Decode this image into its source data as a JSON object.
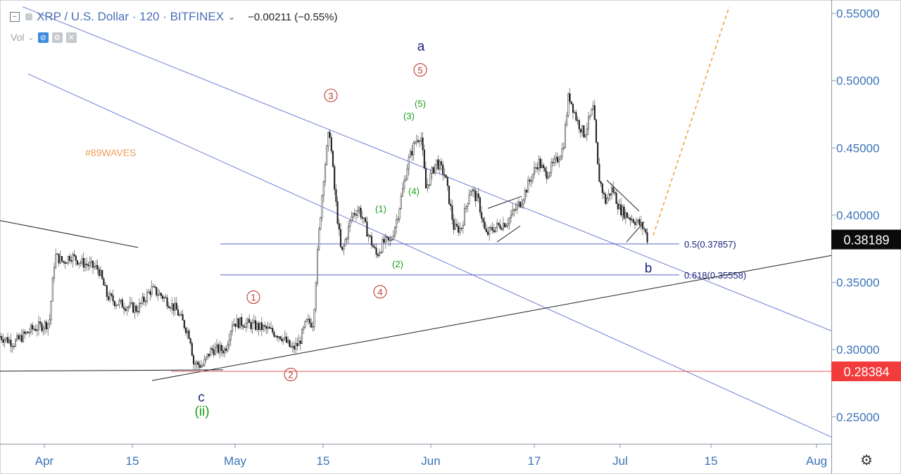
{
  "header": {
    "collapse_icon": "minus-box-icon",
    "symbol_title": "XRP / U.S. Dollar · 120 · BITFINEX",
    "dropdown_icon": "chevron-down-icon",
    "change": "−0.00211 (−0.55%)"
  },
  "volume": {
    "label": "Vol",
    "chevron": "chevron-down-icon",
    "icons": [
      "eye-off-icon",
      "gear-icon",
      "close-icon"
    ]
  },
  "settings_icon": "gear-icon",
  "watermark": "#89WAVES",
  "colors": {
    "candle": "#1e1e1e",
    "price_axis_text": "#3b73b9",
    "channel_line": "#6f7fd6",
    "fib_line": "#5b63c9",
    "support_line": "#e05a5a",
    "trend_line": "#222222",
    "projection": "#f5a04a",
    "red_label": "#c0392b",
    "green_label": "#1a9d1a",
    "navy_label": "#1a237e",
    "watermark": "#f0a05a"
  },
  "chart_data": {
    "type": "candlestick",
    "symbol": "XRP / U.S. Dollar",
    "interval": "120",
    "exchange": "BITFINEX",
    "ylim": [
      0.23,
      0.56
    ],
    "y_ticks": [
      "0.55000",
      "0.50000",
      "0.45000",
      "0.40000",
      "0.35000",
      "0.30000",
      "0.25000"
    ],
    "x_ticks": [
      "Apr",
      "15",
      "May",
      "15",
      "Jun",
      "17",
      "Jul",
      "15",
      "Aug"
    ],
    "price_labels": {
      "current": "0.38189",
      "support": "0.28384"
    },
    "fib_levels": [
      {
        "label": "0.5(0.37857)",
        "value": 0.37857
      },
      {
        "label": "0.618(0.35558)",
        "value": 0.35558
      }
    ],
    "price_path": [
      [
        0,
        0.31
      ],
      [
        20,
        0.305
      ],
      [
        45,
        0.315
      ],
      [
        70,
        0.32
      ],
      [
        78,
        0.37
      ],
      [
        90,
        0.365
      ],
      [
        100,
        0.37
      ],
      [
        115,
        0.365
      ],
      [
        140,
        0.36
      ],
      [
        152,
        0.34
      ],
      [
        165,
        0.335
      ],
      [
        195,
        0.33
      ],
      [
        215,
        0.345
      ],
      [
        230,
        0.34
      ],
      [
        250,
        0.33
      ],
      [
        270,
        0.31
      ],
      [
        275,
        0.29
      ],
      [
        288,
        0.288
      ],
      [
        300,
        0.3
      ],
      [
        320,
        0.3
      ],
      [
        330,
        0.32
      ],
      [
        345,
        0.32
      ],
      [
        360,
        0.318
      ],
      [
        380,
        0.315
      ],
      [
        400,
        0.31
      ],
      [
        415,
        0.3
      ],
      [
        425,
        0.305
      ],
      [
        435,
        0.32
      ],
      [
        445,
        0.32
      ],
      [
        452,
        0.38
      ],
      [
        460,
        0.43
      ],
      [
        468,
        0.465
      ],
      [
        475,
        0.42
      ],
      [
        485,
        0.37
      ],
      [
        500,
        0.4
      ],
      [
        510,
        0.405
      ],
      [
        520,
        0.39
      ],
      [
        535,
        0.37
      ],
      [
        545,
        0.38
      ],
      [
        555,
        0.38
      ],
      [
        565,
        0.4
      ],
      [
        580,
        0.44
      ],
      [
        590,
        0.455
      ],
      [
        598,
        0.46
      ],
      [
        605,
        0.42
      ],
      [
        620,
        0.44
      ],
      [
        632,
        0.43
      ],
      [
        645,
        0.39
      ],
      [
        655,
        0.39
      ],
      [
        668,
        0.42
      ],
      [
        680,
        0.41
      ],
      [
        690,
        0.385
      ],
      [
        700,
        0.39
      ],
      [
        720,
        0.395
      ],
      [
        740,
        0.41
      ],
      [
        752,
        0.425
      ],
      [
        765,
        0.44
      ],
      [
        775,
        0.43
      ],
      [
        790,
        0.44
      ],
      [
        800,
        0.45
      ],
      [
        808,
        0.49
      ],
      [
        820,
        0.47
      ],
      [
        830,
        0.46
      ],
      [
        843,
        0.48
      ],
      [
        850,
        0.43
      ],
      [
        860,
        0.41
      ],
      [
        870,
        0.42
      ],
      [
        880,
        0.405
      ],
      [
        890,
        0.4
      ],
      [
        905,
        0.395
      ],
      [
        915,
        0.39
      ],
      [
        920,
        0.382
      ]
    ],
    "wave_labels": [
      {
        "text": "1",
        "style": "circle-red",
        "day": 360,
        "price": 0.339
      },
      {
        "text": "2",
        "style": "circle-red",
        "day": 413,
        "price": 0.2815
      },
      {
        "text": "3",
        "style": "circle-red",
        "day": 470,
        "price": 0.489
      },
      {
        "text": "4",
        "style": "circle-red",
        "day": 540,
        "price": 0.343
      },
      {
        "text": "5",
        "style": "circle-red",
        "day": 597,
        "price": 0.508
      },
      {
        "text": "(1)",
        "style": "green",
        "day": 541,
        "price": 0.405
      },
      {
        "text": "(2)",
        "style": "green",
        "day": 565,
        "price": 0.364
      },
      {
        "text": "(3)",
        "style": "green",
        "day": 581,
        "price": 0.474
      },
      {
        "text": "(4)",
        "style": "green",
        "day": 588,
        "price": 0.418
      },
      {
        "text": "(5)",
        "style": "green",
        "day": 597,
        "price": 0.483
      },
      {
        "text": "a",
        "style": "navy",
        "day": 598,
        "price": 0.526
      },
      {
        "text": "b",
        "style": "navy",
        "day": 921,
        "price": 0.361
      },
      {
        "text": "c",
        "style": "navy",
        "day": 286,
        "price": 0.265
      },
      {
        "text": "(ii)",
        "style": "green-large",
        "day": 287,
        "price": 0.255
      }
    ],
    "trend_lines": [
      {
        "from": [
          32,
          0.555
        ],
        "to": [
          1181,
          0.314
        ],
        "style": "channel"
      },
      {
        "from": [
          40,
          0.505
        ],
        "to": [
          1181,
          0.235
        ],
        "style": "channel"
      },
      {
        "from": [
          216,
          0.277
        ],
        "to": [
          1181,
          0.37
        ],
        "style": "trend"
      },
      {
        "from": [
          0,
          0.396
        ],
        "to": [
          196,
          0.376
        ],
        "style": "trend"
      },
      {
        "from": [
          0,
          0.284
        ],
        "to": [
          317,
          0.285
        ],
        "style": "trend"
      },
      {
        "from": [
          243,
          0.28384
        ],
        "to": [
          1181,
          0.28384
        ],
        "style": "support"
      },
      {
        "from": [
          313,
          0.37857
        ],
        "to": [
          965,
          0.37857
        ],
        "style": "fib"
      },
      {
        "from": [
          313,
          0.35558
        ],
        "to": [
          965,
          0.35558
        ],
        "style": "fib"
      },
      {
        "from": [
          693,
          0.405
        ],
        "to": [
          741,
          0.414
        ],
        "style": "trend"
      },
      {
        "from": [
          706,
          0.38
        ],
        "to": [
          739,
          0.392
        ],
        "style": "trend"
      },
      {
        "from": [
          862,
          0.426
        ],
        "to": [
          908,
          0.403
        ],
        "style": "trend"
      },
      {
        "from": [
          890,
          0.38
        ],
        "to": [
          915,
          0.395
        ],
        "style": "trend"
      },
      {
        "from": [
          928,
          0.385
        ],
        "to": [
          1036,
          0.555
        ],
        "style": "projection"
      }
    ]
  }
}
